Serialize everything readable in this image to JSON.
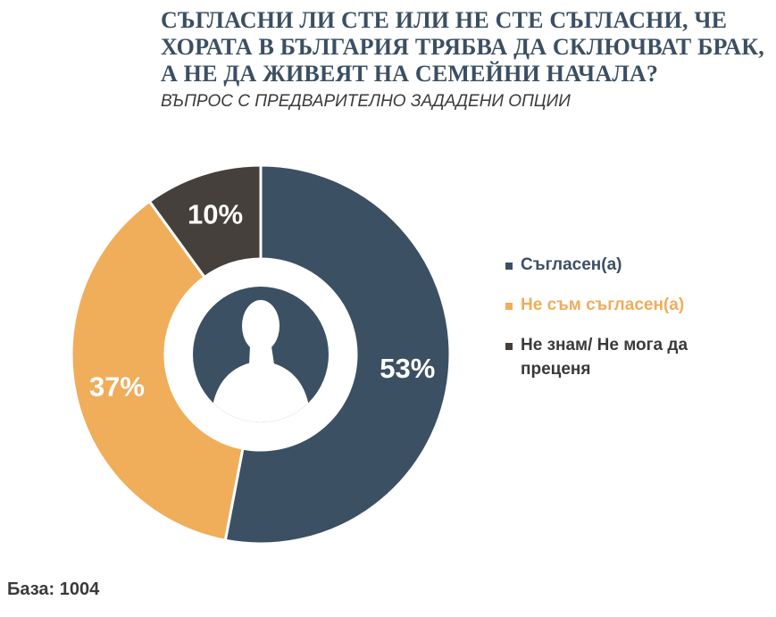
{
  "header": {
    "title": "СЪГЛАСНИ ЛИ СТЕ ИЛИ НЕ СТЕ СЪГЛАСНИ, ЧЕ ХОРАТА В БЪЛГАРИЯ ТРЯБВА ДА СКЛЮЧВАТ БРАК, А НЕ ДА ЖИВЕЯТ НА СЕМЕЙНИ НАЧАЛА?",
    "subtitle": "ВЪПРОС С ПРЕДВАРИТЕЛНО ЗАДАДЕНИ ОПЦИИ"
  },
  "footer": {
    "base_note": "База: 1004"
  },
  "center_icon": "person-silhouette-icon",
  "chart_data": {
    "type": "pie",
    "variant": "donut",
    "title": "СЪГЛАСНИ ЛИ СТЕ ИЛИ НЕ СТЕ СЪГЛАСНИ, ЧЕ ХОРАТА В БЪЛГАРИЯ ТРЯБВА ДА СКЛЮЧВАТ БРАК, А НЕ ДА ЖИВЕЯТ НА СЕМЕЙНИ НАЧАЛА?",
    "subtitle": "ВЪПРОС С ПРЕДВАРИТЕЛНО ЗАДАДЕНИ ОПЦИИ",
    "start_angle": "12 o'clock, clockwise",
    "legend_position": "right",
    "slices": [
      {
        "label": "Съгласен(а)",
        "value": 53,
        "display": "53%",
        "color": "#3c5064",
        "label_color": "#3c5064"
      },
      {
        "label": "Не съм съгласен(а)",
        "value": 37,
        "display": "37%",
        "color": "#f0ad5a",
        "label_color": "#f0ad5a"
      },
      {
        "label": "Не знам/ Не мога да преценя",
        "value": 10,
        "display": "10%",
        "color": "#45403b",
        "label_color": "#3a3a3a"
      }
    ]
  }
}
